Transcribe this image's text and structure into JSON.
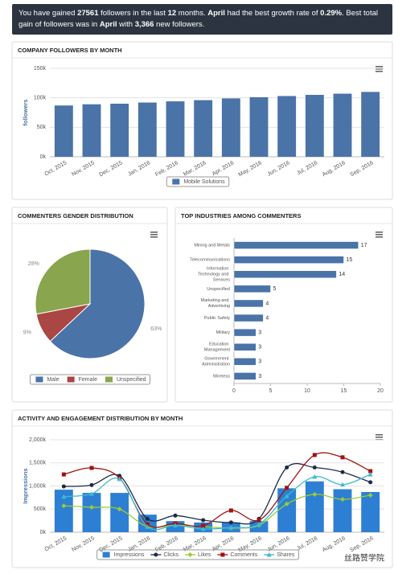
{
  "banner": {
    "segments": [
      {
        "text": "You have gained ",
        "bold": false
      },
      {
        "text": "27561",
        "bold": true
      },
      {
        "text": " followers in the last ",
        "bold": false
      },
      {
        "text": "12",
        "bold": true
      },
      {
        "text": " months. ",
        "bold": false
      },
      {
        "text": "April",
        "bold": true
      },
      {
        "text": " had the best growth rate of ",
        "bold": false
      },
      {
        "text": "0.29%",
        "bold": true
      },
      {
        "text": ". Best total gain of followers was in ",
        "bold": false
      },
      {
        "text": "April",
        "bold": true
      },
      {
        "text": " with ",
        "bold": false
      },
      {
        "text": "3,366",
        "bold": true
      },
      {
        "text": " new followers.",
        "bold": false
      }
    ]
  },
  "chart_data": [
    {
      "type": "bar",
      "title": "COMPANY FOLLOWERS BY MONTH",
      "y_label": "followers",
      "categories": [
        "Oct, 2015",
        "Nov, 2015",
        "Dec, 2015",
        "Jan, 2016",
        "Feb, 2016",
        "Mar, 2016",
        "Apr, 2016",
        "May, 2016",
        "Jun, 2016",
        "Jul, 2016",
        "Aug, 2016",
        "Sep, 2016"
      ],
      "series": [
        {
          "name": "Mobile Solutions",
          "color": "#4a73a8",
          "values": [
            87000,
            89000,
            90000,
            92000,
            94000,
            96000,
            99000,
            101000,
            103000,
            105000,
            107000,
            110000
          ]
        }
      ],
      "ylim": [
        0,
        150000
      ],
      "yticks": [
        {
          "value": 0,
          "label": "0k"
        },
        {
          "value": 50000,
          "label": "50k"
        },
        {
          "value": 100000,
          "label": "100k"
        },
        {
          "value": 150000,
          "label": "150k"
        }
      ],
      "grid": true
    },
    {
      "type": "pie",
      "title": "COMMENTERS GENDER DISTRIBUTION",
      "categories": [
        "Male",
        "Female",
        "Unspecified"
      ],
      "values": [
        63,
        9,
        28
      ],
      "value_labels": [
        "63%",
        "9%",
        "28%"
      ],
      "colors": [
        "#4a73a8",
        "#aa4643",
        "#89a54e"
      ]
    },
    {
      "type": "hbar",
      "title": "TOP INDUSTRIES AMONG COMMENTERS",
      "categories": [
        "Mining and Metals",
        "Telecommunications",
        "Information Technology and Services",
        "Unspecified",
        "Marketing and Advertising",
        "Public Safety",
        "Military",
        "Education Management",
        "Government Administration",
        "Wireless"
      ],
      "values": [
        17,
        15,
        14,
        5,
        4,
        4,
        3,
        3,
        3,
        3
      ],
      "color": "#4a73a8",
      "xlim": [
        0,
        20
      ],
      "xticks": [
        0,
        5,
        10,
        15,
        20
      ]
    },
    {
      "type": "combo",
      "title": "ACTIVITY AND ENGAGEMENT DISTRIBUTION BY MONTH",
      "y_label": "Impressions",
      "categories": [
        "Oct, 2015",
        "Nov, 2015",
        "Dec, 2015",
        "Jan, 2016",
        "Feb, 2016",
        "Mar, 2016",
        "Apr, 2016",
        "May, 2016",
        "Jun, 2016",
        "Jul, 2016",
        "Aug, 2016",
        "Sep, 2016"
      ],
      "series": [
        {
          "name": "Impressions",
          "kind": "bar",
          "color": "#2d7fd3",
          "values": [
            920000,
            850000,
            850000,
            380000,
            240000,
            210000,
            210000,
            240000,
            950000,
            1100000,
            930000,
            870000
          ]
        },
        {
          "name": "Clicks",
          "kind": "line",
          "marker": "circle",
          "color": "#1c2a48",
          "values": [
            990000,
            1020000,
            1220000,
            290000,
            360000,
            260000,
            210000,
            290000,
            1400000,
            1400000,
            1300000,
            1080000
          ]
        },
        {
          "name": "Likes",
          "kind": "line",
          "marker": "diamond",
          "color": "#9acd32",
          "values": [
            570000,
            540000,
            500000,
            120000,
            150000,
            120000,
            90000,
            150000,
            610000,
            820000,
            710000,
            800000
          ]
        },
        {
          "name": "Comments",
          "kind": "line",
          "marker": "square",
          "color": "#a01212",
          "values": [
            1250000,
            1390000,
            1170000,
            170000,
            190000,
            140000,
            470000,
            260000,
            960000,
            1670000,
            1620000,
            1320000
          ]
        },
        {
          "name": "Shares",
          "kind": "line",
          "marker": "triangle",
          "color": "#3bbcd0",
          "values": [
            770000,
            830000,
            1150000,
            120000,
            150000,
            70000,
            100000,
            170000,
            780000,
            1200000,
            1030000,
            1250000
          ]
        }
      ],
      "ylim": [
        0,
        2000000
      ],
      "yticks": [
        {
          "value": 0,
          "label": "0k"
        },
        {
          "value": 500000,
          "label": "500k"
        },
        {
          "value": 1000000,
          "label": "1,000k"
        },
        {
          "value": 1500000,
          "label": "1,500k"
        },
        {
          "value": 2000000,
          "label": "2,000k"
        }
      ],
      "grid": true
    }
  ],
  "watermark": "丝路赞学院"
}
